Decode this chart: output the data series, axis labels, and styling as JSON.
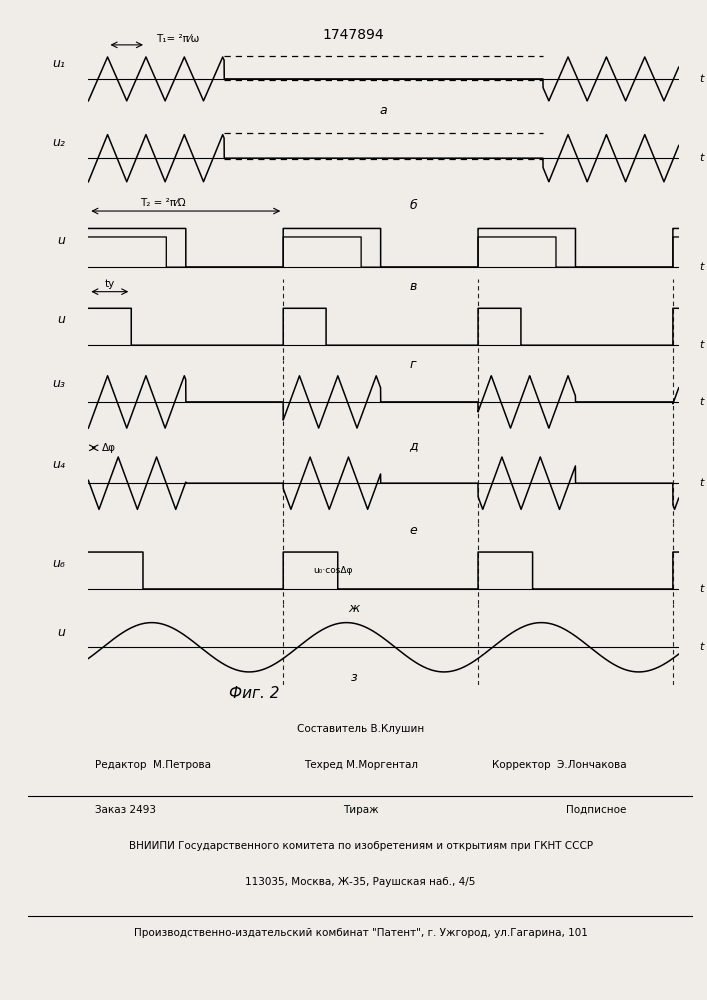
{
  "title": "1747894",
  "fig_caption": "Фиг. 2",
  "background_color": "#f0ede8",
  "panel_labels": [
    "а",
    "б",
    "в",
    "г",
    "д",
    "е",
    "ж",
    "з"
  ],
  "y_labels": [
    "u₁",
    "u₂",
    "u",
    "u",
    "u₃",
    "u₄",
    "u₆",
    "u"
  ],
  "signal_label": "u₀·cosΔφ",
  "annotation_T1": "T₁= ²π⁄ω",
  "annotation_T2": "T₂ = ²π⁄Ω",
  "annotation_tu": "tу",
  "annotation_dphi": "Δφ",
  "footer_editor": "Редактор  М.Петрова",
  "footer_composer": "Составитель В.Клушин",
  "footer_techred": "Техред М.Моргентал",
  "footer_corrector": "Корректор  Э.Лончакова",
  "footer_zakaz": "Заказ 2493",
  "footer_tirazh": "Тираж",
  "footer_podpisnoe": "Подписное",
  "footer_vniipи": "ВНИИПИ Государственного комитета по изобретениям и открытиям при ГКНТ СССР",
  "footer_address": "113035, Москва, Ж-35, Раушская наб., 4/5",
  "footer_factory": "Производственно-издательский комбинат \"Патент\", г. Ужгород, ул.Гагарина, 101"
}
